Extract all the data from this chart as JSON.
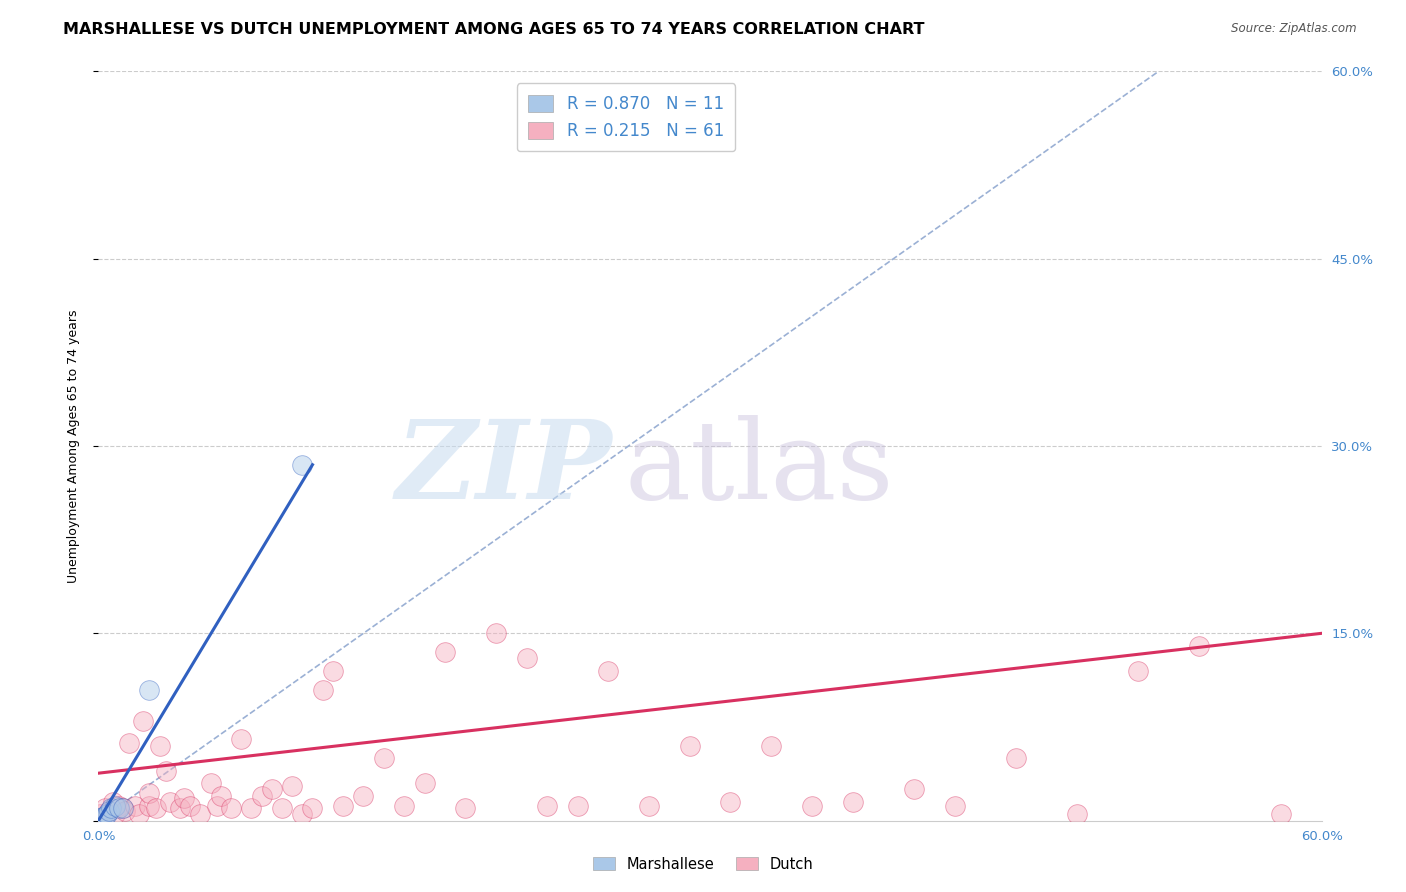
{
  "title": "MARSHALLESE VS DUTCH UNEMPLOYMENT AMONG AGES 65 TO 74 YEARS CORRELATION CHART",
  "source": "Source: ZipAtlas.com",
  "ylabel": "Unemployment Among Ages 65 to 74 years",
  "xlim": [
    0.0,
    0.6
  ],
  "ylim": [
    0.0,
    0.6
  ],
  "xticks": [
    0.0,
    0.1,
    0.2,
    0.3,
    0.4,
    0.5,
    0.6
  ],
  "yticks": [
    0.0,
    0.15,
    0.3,
    0.45,
    0.6
  ],
  "xticklabels": [
    "0.0%",
    "",
    "",
    "",
    "",
    "",
    "60.0%"
  ],
  "yticklabels_right": [
    "",
    "15.0%",
    "30.0%",
    "45.0%",
    "60.0%"
  ],
  "grid_yticks": [
    0.15,
    0.3,
    0.45,
    0.6
  ],
  "marshallese_color": "#aac8e8",
  "dutch_color": "#f5b0c0",
  "marshallese_line_color": "#3060c0",
  "dutch_line_color": "#d83060",
  "dashed_line_color": "#90a8d0",
  "r_marshallese": 0.87,
  "n_marshallese": 11,
  "r_dutch": 0.215,
  "n_dutch": 61,
  "marshallese_x": [
    0.001,
    0.002,
    0.003,
    0.004,
    0.005,
    0.006,
    0.008,
    0.01,
    0.012,
    0.025,
    0.1
  ],
  "marshallese_y": [
    0.002,
    0.003,
    0.004,
    0.005,
    0.008,
    0.01,
    0.012,
    0.01,
    0.01,
    0.105,
    0.285
  ],
  "dutch_x": [
    0.001,
    0.003,
    0.005,
    0.007,
    0.008,
    0.01,
    0.012,
    0.013,
    0.015,
    0.018,
    0.02,
    0.022,
    0.025,
    0.025,
    0.028,
    0.03,
    0.033,
    0.035,
    0.04,
    0.042,
    0.045,
    0.05,
    0.055,
    0.058,
    0.06,
    0.065,
    0.07,
    0.075,
    0.08,
    0.085,
    0.09,
    0.095,
    0.1,
    0.105,
    0.11,
    0.115,
    0.12,
    0.13,
    0.14,
    0.15,
    0.16,
    0.17,
    0.18,
    0.195,
    0.21,
    0.22,
    0.235,
    0.25,
    0.27,
    0.29,
    0.31,
    0.33,
    0.35,
    0.37,
    0.4,
    0.42,
    0.45,
    0.48,
    0.51,
    0.54,
    0.58
  ],
  "dutch_y": [
    0.005,
    0.01,
    0.008,
    0.015,
    0.005,
    0.012,
    0.01,
    0.008,
    0.062,
    0.012,
    0.005,
    0.08,
    0.012,
    0.022,
    0.01,
    0.06,
    0.04,
    0.015,
    0.01,
    0.018,
    0.012,
    0.005,
    0.03,
    0.012,
    0.02,
    0.01,
    0.065,
    0.01,
    0.02,
    0.025,
    0.01,
    0.028,
    0.005,
    0.01,
    0.105,
    0.12,
    0.012,
    0.02,
    0.05,
    0.012,
    0.03,
    0.135,
    0.01,
    0.15,
    0.13,
    0.012,
    0.012,
    0.12,
    0.012,
    0.06,
    0.015,
    0.06,
    0.012,
    0.015,
    0.025,
    0.012,
    0.05,
    0.005,
    0.12,
    0.14,
    0.005
  ],
  "dutch_line_x0": 0.0,
  "dutch_line_y0": 0.038,
  "dutch_line_x1": 0.6,
  "dutch_line_y1": 0.15,
  "marsh_line_x0": 0.0,
  "marsh_line_y0": 0.0,
  "marsh_line_x1": 0.105,
  "marsh_line_y1": 0.285,
  "dash_line_x0": 0.0,
  "dash_line_y0": 0.0,
  "dash_line_x1": 0.52,
  "dash_line_y1": 0.6,
  "marker_size": 200,
  "marker_alpha": 0.45,
  "title_fontsize": 11.5,
  "axis_label_fontsize": 9,
  "tick_fontsize": 9.5,
  "legend_fontsize": 12
}
